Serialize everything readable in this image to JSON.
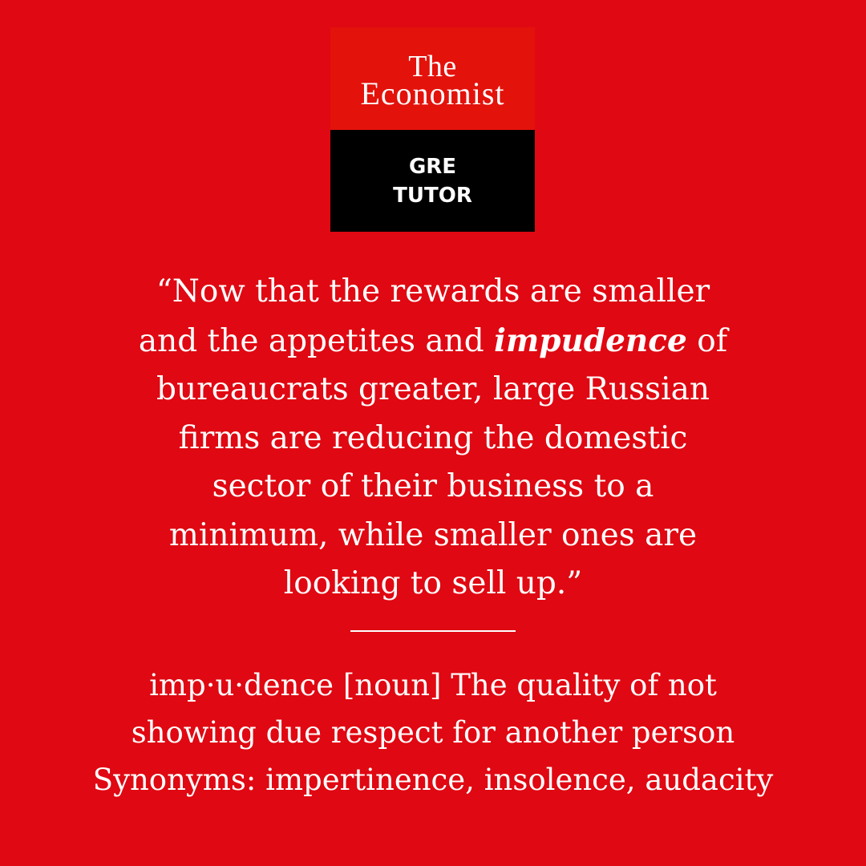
{
  "logo": {
    "line1": "The",
    "line2": "Economist",
    "badge_line1": "GRE",
    "badge_line2": "TUTOR"
  },
  "quote": {
    "line1": "“Now that the rewards are smaller",
    "line2_before": "and the appetites and ",
    "line2_word": "impudence",
    "line2_after": " of",
    "line3": "bureaucrats greater, large Russian",
    "line4": "firms are reducing the domestic",
    "line5": "sector of their business to a",
    "line6": "minimum, while smaller ones are",
    "line7": "looking to sell up.”"
  },
  "definition": {
    "line1": "imp·u·dence [noun] The quality of not",
    "line2": "showing due respect for another person",
    "line3": "Synonyms: impertinence, insolence, audacity"
  },
  "colors": {
    "background": "#e00812",
    "logo_red": "#e3120b",
    "logo_black": "#000000",
    "text": "#ffffff"
  }
}
